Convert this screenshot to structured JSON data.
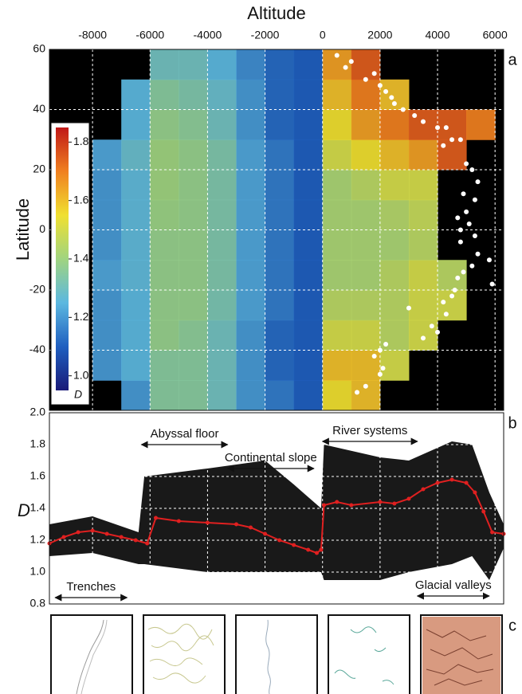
{
  "chart_data": [
    {
      "type": "heatmap",
      "panel_label": "a",
      "title": "Altitude",
      "ylabel": "Latitude",
      "xlim": [
        -9500,
        6300
      ],
      "xticks": [
        -8000,
        -6000,
        -4000,
        -2000,
        0,
        2000,
        4000,
        6000
      ],
      "ylim": [
        -60,
        60
      ],
      "yticks": [
        60,
        40,
        20,
        0,
        -20,
        -40
      ],
      "grid": true,
      "background": "#000000",
      "xbins": [
        -9000,
        -8000,
        -7000,
        -6000,
        -5000,
        -4000,
        -3000,
        -2000,
        -1000,
        0,
        1000,
        2000,
        3000,
        4000,
        5000,
        6000
      ],
      "ybins": [
        -60,
        -50,
        -40,
        -30,
        -20,
        -10,
        0,
        10,
        20,
        30,
        40,
        50,
        60
      ],
      "z": [
        [
          null,
          null,
          1.2,
          1.35,
          1.35,
          1.3,
          1.2,
          1.15,
          1.1,
          1.55,
          1.6,
          null,
          null,
          null,
          null
        ],
        [
          null,
          1.2,
          1.25,
          1.35,
          1.35,
          1.3,
          1.2,
          1.12,
          1.1,
          1.6,
          1.6,
          1.5,
          null,
          null,
          null
        ],
        [
          null,
          1.2,
          1.25,
          1.38,
          1.36,
          1.3,
          1.2,
          1.12,
          1.1,
          1.5,
          1.5,
          1.45,
          1.5,
          null,
          null
        ],
        [
          null,
          1.2,
          1.25,
          1.38,
          1.38,
          1.32,
          1.22,
          1.15,
          1.1,
          1.45,
          1.45,
          1.45,
          1.5,
          1.5,
          null
        ],
        [
          null,
          1.22,
          1.26,
          1.38,
          1.38,
          1.33,
          1.22,
          1.15,
          1.1,
          1.42,
          1.42,
          1.45,
          1.5,
          1.45,
          null
        ],
        [
          null,
          1.2,
          1.26,
          1.38,
          1.38,
          1.33,
          1.22,
          1.15,
          1.1,
          1.42,
          1.42,
          1.42,
          1.45,
          null,
          null
        ],
        [
          null,
          1.2,
          1.26,
          1.39,
          1.38,
          1.33,
          1.22,
          1.15,
          1.1,
          1.42,
          1.42,
          1.44,
          1.47,
          null,
          null
        ],
        [
          null,
          1.2,
          1.26,
          1.4,
          1.38,
          1.33,
          1.22,
          1.15,
          1.1,
          1.42,
          1.45,
          1.5,
          1.5,
          null,
          null
        ],
        [
          null,
          1.22,
          1.28,
          1.4,
          1.38,
          1.33,
          1.22,
          1.15,
          1.1,
          1.5,
          1.55,
          1.6,
          1.65,
          1.75,
          null
        ],
        [
          null,
          null,
          1.25,
          1.38,
          1.36,
          1.3,
          1.2,
          1.12,
          1.1,
          1.55,
          1.65,
          1.7,
          1.75,
          1.75,
          1.7
        ],
        [
          null,
          null,
          1.25,
          1.35,
          1.33,
          1.28,
          1.2,
          1.12,
          1.1,
          1.6,
          1.7,
          1.6,
          null,
          null,
          null
        ],
        [
          null,
          null,
          null,
          1.3,
          1.3,
          1.25,
          1.18,
          1.12,
          1.1,
          1.65,
          1.75,
          null,
          null,
          null,
          null
        ]
      ],
      "colormap": [
        "#1a1a78",
        "#1f5fc0",
        "#5cb8e0",
        "#a0d480",
        "#f0e030",
        "#f08020",
        "#c01818"
      ],
      "colorbar": {
        "label": "D",
        "clim": [
          0.95,
          1.85
        ],
        "ticks": [
          {
            "value": 1.8,
            "label": "1.8"
          },
          {
            "value": 1.6,
            "label": "1.6"
          },
          {
            "value": 1.4,
            "label": "1.4"
          },
          {
            "value": 1.2,
            "label": "1.2"
          },
          {
            "value": 1,
            "label": "1.0"
          }
        ]
      },
      "points": {
        "color": "#ffffff",
        "x": [
          500,
          1000,
          800,
          1800,
          1500,
          2000,
          2200,
          2400,
          2500,
          2800,
          3200,
          3500,
          4000,
          4300,
          4500,
          4800,
          4200,
          5000,
          5200,
          5400,
          4900,
          5300,
          5000,
          4700,
          5100,
          4800,
          5300,
          4800,
          5400,
          5800,
          5200,
          4900,
          4700,
          5900,
          4600,
          4500,
          4200,
          3000,
          4300,
          3800,
          4000,
          3500,
          2200,
          2000,
          1800,
          2100,
          2000,
          1500,
          1200
        ],
        "y": [
          58,
          56,
          54,
          52,
          50,
          48,
          46,
          44,
          42,
          40,
          38,
          36,
          34,
          34,
          30,
          30,
          28,
          22,
          20,
          16,
          12,
          10,
          6,
          4,
          2,
          0,
          -2,
          -4,
          -8,
          -10,
          -12,
          -14,
          -16,
          -18,
          -20,
          -22,
          -24,
          -26,
          -28,
          -32,
          -34,
          -36,
          -38,
          -40,
          -42,
          -46,
          -48,
          -52,
          -54
        ]
      }
    },
    {
      "type": "band-line",
      "panel_label": "b",
      "ylabel": "D",
      "ylim": [
        0.8,
        2.0
      ],
      "yticks": [
        {
          "value": 2,
          "label": "2.0"
        },
        1.8,
        1.6,
        1.4,
        1.2,
        {
          "value": 1,
          "label": "1.0"
        },
        0.8
      ],
      "grid": true,
      "band": {
        "color": "#000000",
        "x": [
          -9500,
          -8000,
          -6400,
          -6200,
          -4000,
          -2000,
          -1000,
          -50,
          50,
          2000,
          3000,
          4500,
          5200,
          5800,
          6300
        ],
        "low": [
          1.1,
          1.12,
          1.05,
          1.05,
          1.0,
          1.0,
          1.0,
          1.0,
          0.95,
          0.95,
          1.0,
          1.05,
          1.1,
          0.95,
          1.15
        ],
        "high": [
          1.3,
          1.35,
          1.25,
          1.6,
          1.65,
          1.7,
          1.55,
          1.4,
          1.8,
          1.72,
          1.7,
          1.82,
          1.8,
          1.5,
          1.3
        ]
      },
      "mean": {
        "color": "#e02020",
        "x": [
          -9500,
          -9000,
          -8500,
          -8000,
          -7500,
          -7000,
          -6500,
          -6100,
          -5800,
          -5000,
          -4000,
          -3000,
          -2500,
          -2000,
          -1500,
          -1000,
          -500,
          -200,
          -50,
          50,
          500,
          1000,
          2000,
          2500,
          3000,
          3500,
          4000,
          4500,
          5000,
          5300,
          5600,
          5900,
          6300
        ],
        "values": [
          1.18,
          1.22,
          1.25,
          1.26,
          1.24,
          1.22,
          1.2,
          1.18,
          1.34,
          1.32,
          1.31,
          1.3,
          1.28,
          1.24,
          1.2,
          1.17,
          1.14,
          1.12,
          1.14,
          1.42,
          1.44,
          1.42,
          1.44,
          1.43,
          1.46,
          1.52,
          1.56,
          1.58,
          1.56,
          1.5,
          1.38,
          1.25,
          1.24
        ]
      },
      "annotations": [
        {
          "text": "Abyssal floor",
          "x": [
            -6300,
            -3300
          ],
          "y": 1.8
        },
        {
          "text": "Continental slope",
          "x": [
            -3300,
            -300
          ],
          "y": 1.65
        },
        {
          "text": "River systems",
          "x": [
            0,
            3300
          ],
          "y": 1.82
        },
        {
          "text": "Trenches",
          "x": [
            -9300,
            -6800
          ],
          "y": 0.84
        },
        {
          "text": "Glacial valleys",
          "x": [
            3300,
            5800
          ],
          "y": 0.85
        }
      ]
    },
    {
      "type": "thumbnails",
      "panel_label": "c"
    }
  ]
}
